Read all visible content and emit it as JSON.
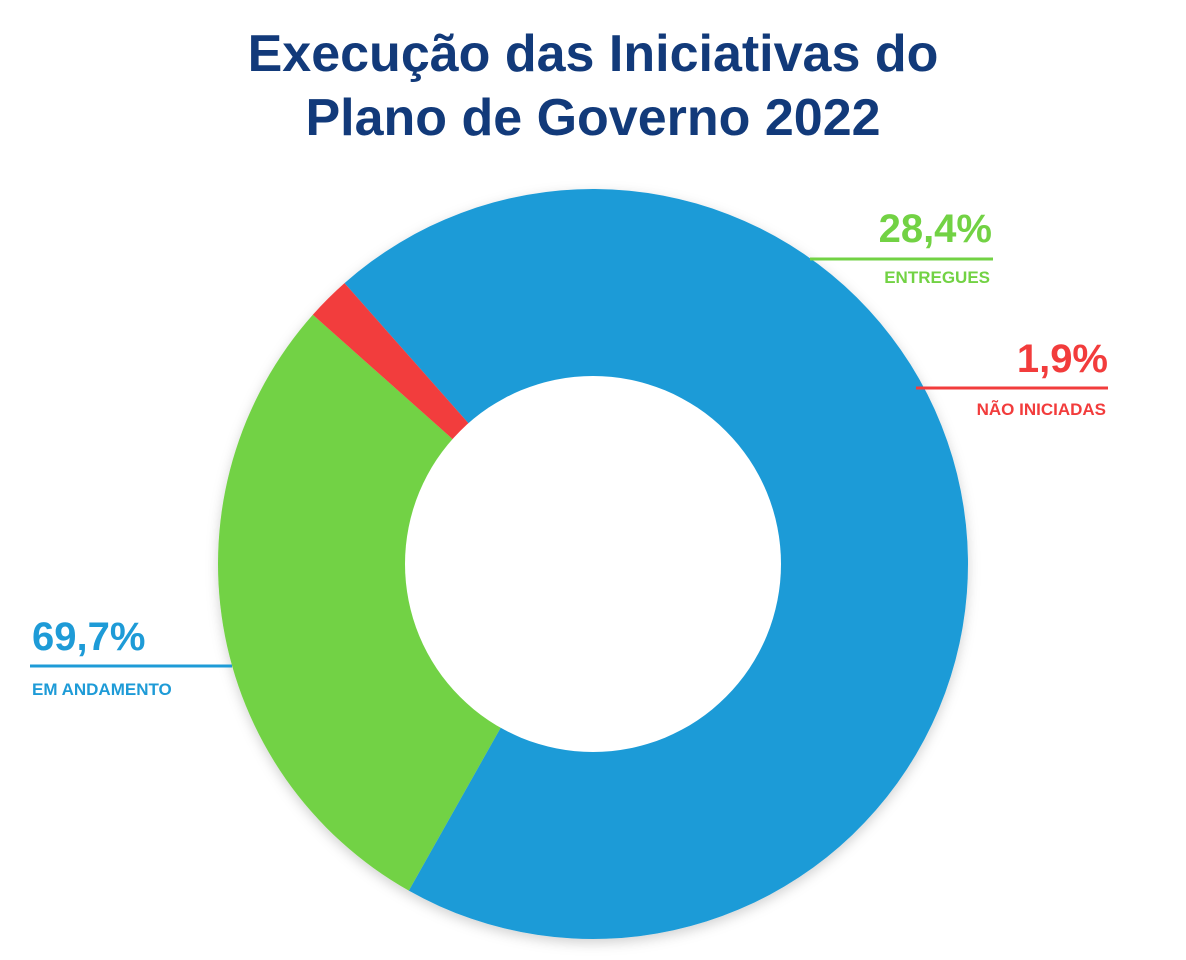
{
  "chart_data": {
    "type": "pie",
    "variant": "donut",
    "title_lines": [
      "Execução das Iniciativas do",
      "Plano de Governo 2022"
    ],
    "start_angle_deg": -41.5,
    "series": [
      {
        "name": "EM ANDAMENTO",
        "value": 69.7,
        "label": "69,7%",
        "color": "#1e9bd7",
        "label_side": "left"
      },
      {
        "name": "ENTREGUES",
        "value": 28.4,
        "label": "28,4%",
        "color": "#72d244",
        "label_side": "right"
      },
      {
        "name": "NÃO INICIADAS",
        "value": 1.9,
        "label": "1,9%",
        "color": "#f23c3c",
        "label_side": "right"
      }
    ]
  }
}
